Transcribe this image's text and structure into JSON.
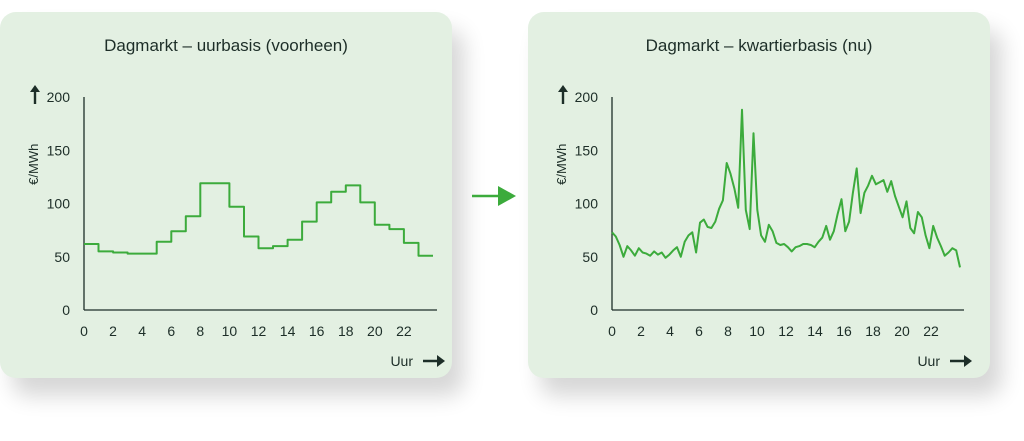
{
  "chart_data": [
    {
      "type": "line",
      "title": "Dagmarkt – uurbasis (voorheen)",
      "ylabel": "€/MWh",
      "xlabel": "Uur",
      "ylim": [
        0,
        200
      ],
      "xlim": [
        0,
        24
      ],
      "yticks": [
        "0",
        "50",
        "100",
        "150",
        "200"
      ],
      "xticks": [
        "0",
        "2",
        "4",
        "6",
        "8",
        "10",
        "12",
        "14",
        "16",
        "18",
        "20",
        "22"
      ],
      "line_color": "#3cab3c",
      "step": true,
      "series": [
        {
          "values": [
            62,
            55,
            54,
            53,
            53,
            64,
            74,
            88,
            119,
            119,
            97,
            69,
            58,
            60,
            66,
            83,
            101,
            111,
            117,
            101,
            80,
            76,
            63,
            51
          ]
        }
      ]
    },
    {
      "type": "line",
      "title": "Dagmarkt – kwartierbasis (nu)",
      "ylabel": "€/MWh",
      "xlabel": "Uur",
      "ylim": [
        0,
        200
      ],
      "xlim": [
        0,
        24
      ],
      "yticks": [
        "0",
        "50",
        "100",
        "150",
        "200"
      ],
      "xticks": [
        "0",
        "2",
        "4",
        "6",
        "8",
        "10",
        "12",
        "14",
        "16",
        "18",
        "20",
        "22"
      ],
      "line_color": "#3cab3c",
      "step": false,
      "series": [
        {
          "values": [
            73,
            69,
            61,
            50,
            60,
            56,
            51,
            58,
            54,
            53,
            51,
            55,
            52,
            54,
            49,
            52,
            56,
            59,
            50,
            64,
            70,
            73,
            54,
            82,
            85,
            78,
            77,
            83,
            95,
            103,
            138,
            128,
            114,
            96,
            188,
            94,
            76,
            166,
            94,
            70,
            64,
            80,
            74,
            63,
            61,
            62,
            59,
            55,
            59,
            60,
            62,
            62,
            61,
            59,
            64,
            68,
            79,
            66,
            74,
            90,
            104,
            74,
            83,
            110,
            133,
            91,
            110,
            117,
            126,
            118,
            120,
            122,
            111,
            121,
            107,
            97,
            87,
            102,
            77,
            72,
            92,
            87,
            70,
            58,
            79,
            68,
            60,
            51,
            54,
            58,
            56,
            40
          ]
        }
      ]
    }
  ],
  "arrow_color": "#3cab3c"
}
